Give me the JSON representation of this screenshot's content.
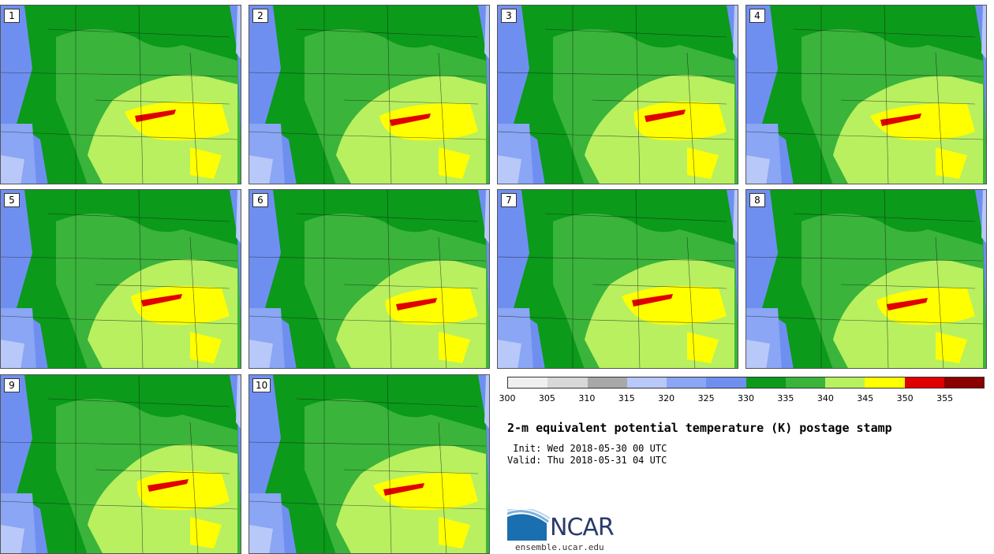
{
  "panels": [
    {
      "label": "1"
    },
    {
      "label": "2"
    },
    {
      "label": "3"
    },
    {
      "label": "4"
    },
    {
      "label": "5"
    },
    {
      "label": "6"
    },
    {
      "label": "7"
    },
    {
      "label": "8"
    },
    {
      "label": "9"
    },
    {
      "label": "10"
    }
  ],
  "colorbar": {
    "colors": [
      "#f0f0f0",
      "#d8d8d8",
      "#a8a8a8",
      "#b8c8f8",
      "#8aa6f4",
      "#6f8ff0",
      "#0b9a1a",
      "#3ab43a",
      "#b8f060",
      "#ffff00",
      "#e00000",
      "#8b0000"
    ],
    "ticks": [
      "300",
      "305",
      "310",
      "315",
      "320",
      "325",
      "330",
      "335",
      "340",
      "345",
      "350",
      "355"
    ]
  },
  "title": "2-m equivalent potential temperature (K) postage stamp",
  "init": " Init: Wed 2018-05-30 00 UTC",
  "valid": "Valid: Thu 2018-05-31 04 UTC",
  "logo": {
    "name": "NCAR",
    "url": "ensemble.ucar.edu"
  }
}
